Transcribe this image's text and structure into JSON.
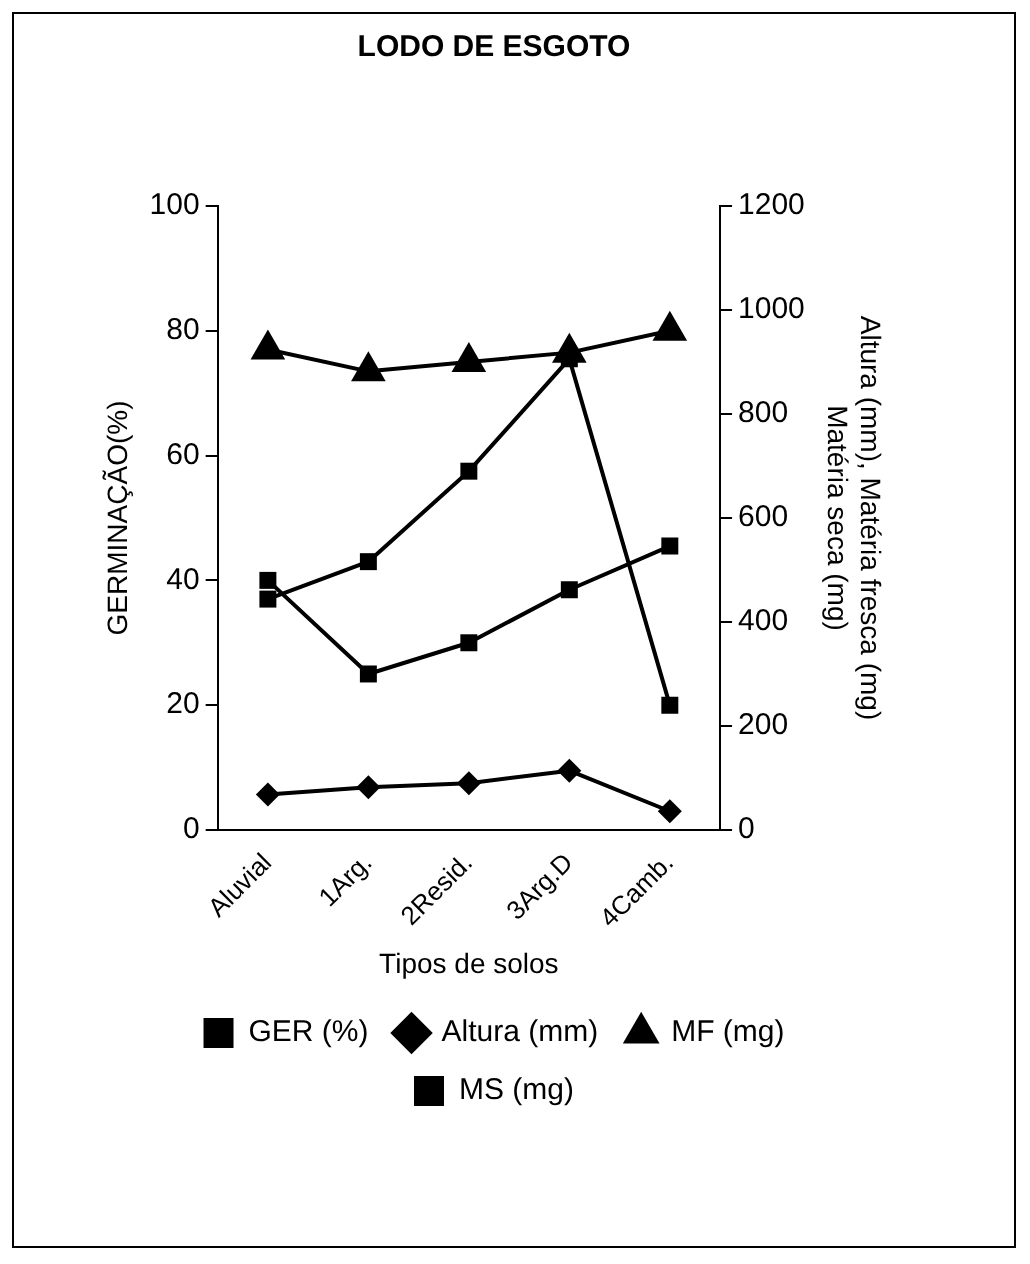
{
  "chart_data": {
    "type": "line",
    "title": "LODO DE ESGOTO",
    "xlabel": "Tipos de solos",
    "ylabel": "GERMINAÇÃO(%)",
    "y2label": "Altura (mm), Matéria fresca (mg)\nMatéria seca (mg)",
    "categories": [
      "Aluvial",
      "1Arg.",
      "2Resid.",
      "3Arg.D",
      "4Camb."
    ],
    "series": [
      {
        "name": "GER (%)",
        "color": "#000000",
        "marker": "square",
        "values": [
          37,
          43,
          57.5,
          75.5,
          20
        ]
      },
      {
        "name": "Altura (mm)",
        "color": "#000000",
        "marker": "diamond",
        "axis": "y2",
        "values": [
          68,
          82,
          90,
          114,
          36
        ]
      },
      {
        "name": "MF (mg)",
        "color": "#000000",
        "marker": "triangle",
        "axis": "y2",
        "values": [
          924,
          882,
          900,
          918,
          960
        ]
      },
      {
        "name": "MS (mg)",
        "color": "#000000",
        "marker": "square",
        "axis": "y2",
        "values": [
          480,
          300,
          360,
          462,
          546
        ]
      }
    ],
    "ylim": [
      0,
      100
    ],
    "yticks": [
      0,
      20,
      40,
      60,
      80,
      100
    ],
    "y2lim": [
      0,
      1200
    ],
    "y2ticks": [
      0,
      200,
      400,
      600,
      800,
      1000,
      1200
    ],
    "grid": false,
    "legend": "bottom",
    "line_style": "solid"
  }
}
